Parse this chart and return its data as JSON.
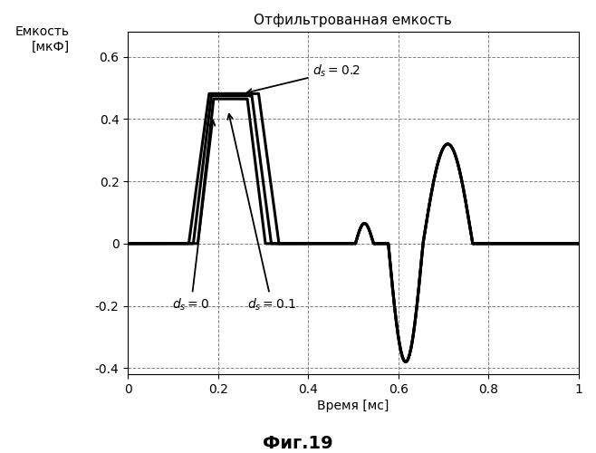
{
  "title": "Отфильтрованная емкость",
  "ylabel": "Емкость\n[мкФ]",
  "xlabel": "Время [мс]",
  "fig_label": "Фиг.19",
  "xlim": [
    0,
    1.0
  ],
  "ylim": [
    -0.42,
    0.68
  ],
  "yticks": [
    -0.4,
    -0.2,
    0,
    0.2,
    0.4,
    0.6
  ],
  "xticks": [
    0,
    0.2,
    0.4,
    0.6,
    0.8,
    1.0
  ],
  "line_color": "#000000",
  "line_width": 2.2,
  "grid_color": "#777777",
  "background_color": "#ffffff",
  "ann_d02_text": "$d_s = 0.2$",
  "ann_d00_text": "$d_s = 0$",
  "ann_d01_text": "$d_s = 0.1$"
}
